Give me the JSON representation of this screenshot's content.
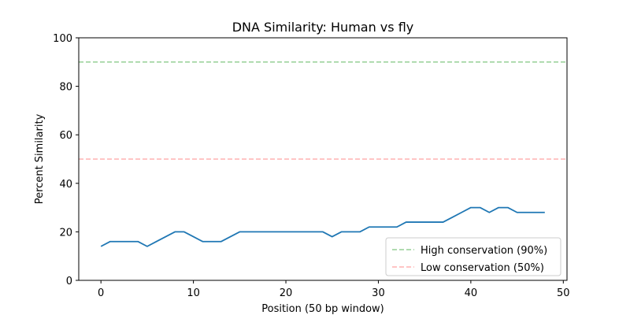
{
  "chart_data": {
    "type": "line",
    "title": "DNA Similarity: Human vs fly",
    "xlabel": "Position (50 bp window)",
    "ylabel": "Percent Similarity",
    "xlim": [
      -2.4,
      50.4
    ],
    "ylim": [
      0,
      100
    ],
    "xticks": [
      0,
      10,
      20,
      30,
      40,
      50
    ],
    "yticks": [
      0,
      20,
      40,
      60,
      80,
      100
    ],
    "grid": false,
    "legend_position": "lower-right",
    "series": [
      {
        "color": "#1f77b4",
        "x": [
          0,
          1,
          2,
          3,
          4,
          5,
          6,
          7,
          8,
          9,
          10,
          11,
          12,
          13,
          14,
          15,
          16,
          17,
          18,
          19,
          20,
          21,
          22,
          23,
          24,
          25,
          26,
          27,
          28,
          29,
          30,
          31,
          32,
          33,
          34,
          35,
          36,
          37,
          38,
          39,
          40,
          41,
          42,
          43,
          44,
          45,
          46,
          47,
          48
        ],
        "y": [
          14,
          16,
          16,
          16,
          16,
          14,
          16,
          18,
          20,
          20,
          18,
          16,
          16,
          16,
          18,
          20,
          20,
          20,
          20,
          20,
          20,
          20,
          20,
          20,
          20,
          18,
          20,
          20,
          20,
          22,
          22,
          22,
          22,
          24,
          24,
          24,
          24,
          24,
          26,
          28,
          30,
          30,
          28,
          30,
          30,
          28,
          28,
          28,
          28
        ]
      }
    ],
    "reference_lines": [
      {
        "name": "High conservation (90%)",
        "y": 90,
        "color": "#2ca02c",
        "dash": "dashed"
      },
      {
        "name": "Low conservation (50%)",
        "y": 50,
        "color": "#ff6666",
        "dash": "dashed"
      }
    ]
  }
}
